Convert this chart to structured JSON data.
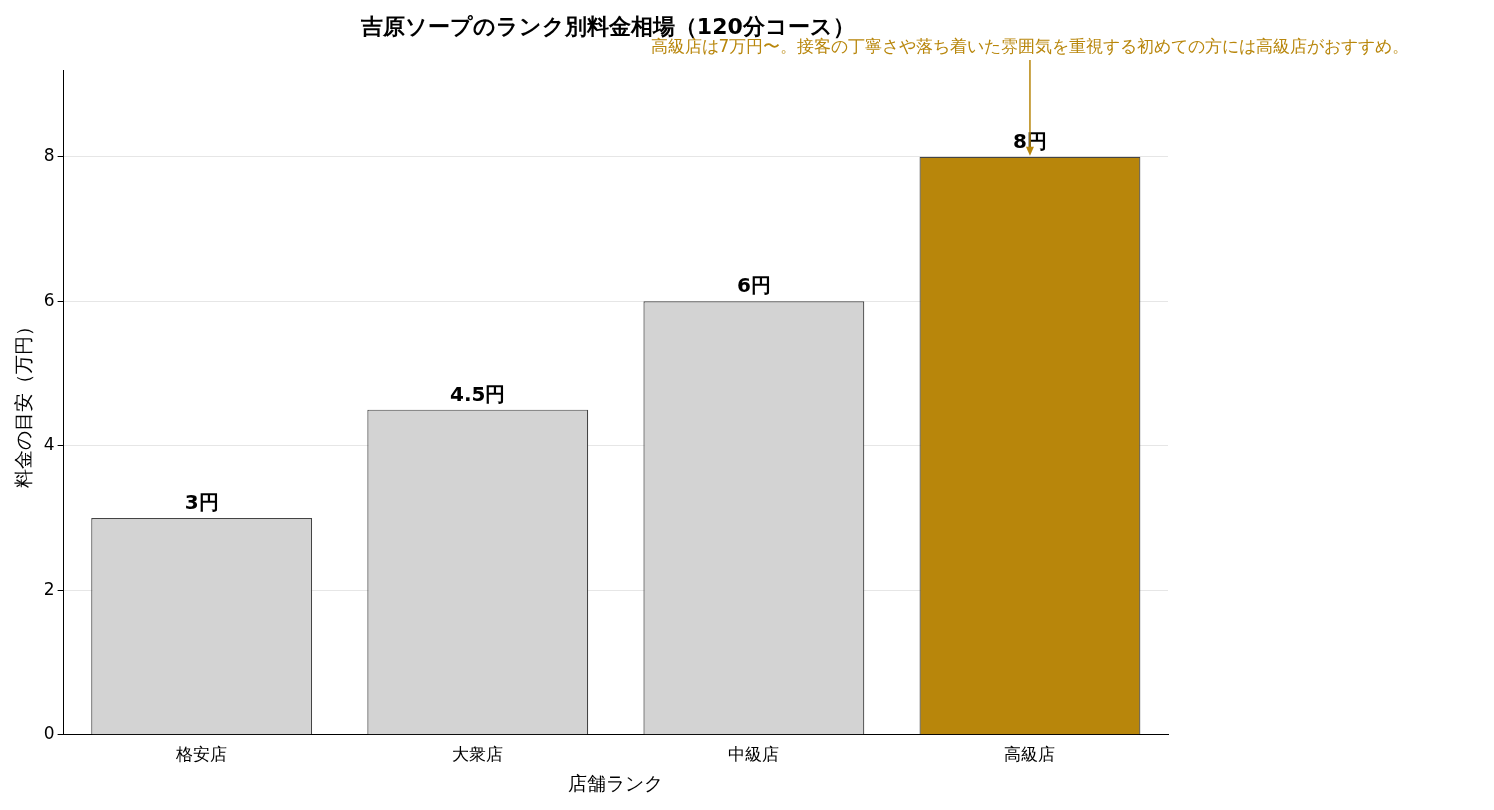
{
  "chart_data": {
    "type": "bar",
    "title": "吉原ソープのランク別料金相場（120分コース）",
    "xlabel": "店舗ランク",
    "ylabel": "料金の目安（万円）",
    "categories": [
      "格安店",
      "大衆店",
      "中級店",
      "高級店"
    ],
    "values": [
      3,
      4.5,
      6,
      8
    ],
    "colors": [
      "#d3d3d3",
      "#d3d3d3",
      "#d3d3d3",
      "#b8860b"
    ],
    "value_labels": [
      "3円",
      "4.5円",
      "6円",
      "8円"
    ],
    "annotations": [
      {
        "text": "高級店は7万円〜。接客の丁寧さや落ち着いた雰囲気を重視する初めての方には高級店がおすすめ。",
        "x": "高級店",
        "y": 8
      }
    ],
    "ylim": [
      0,
      9.2
    ],
    "yticks": [
      0,
      2,
      4,
      6,
      8
    ],
    "grid": "y",
    "legend": false
  }
}
